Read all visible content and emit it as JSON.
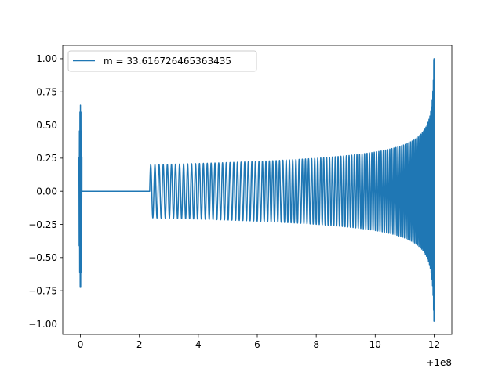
{
  "chart_data": {
    "type": "line",
    "title": "",
    "xlabel": "",
    "ylabel": "",
    "x_offset_label": "+1e8",
    "xlim": [
      -0.6,
      12.6
    ],
    "ylim": [
      -1.08,
      1.1
    ],
    "x_ticks": [
      0,
      2,
      4,
      6,
      8,
      10,
      12
    ],
    "x_tick_labels": [
      "0",
      "2",
      "4",
      "6",
      "8",
      "10",
      "12"
    ],
    "y_ticks": [
      1.0,
      0.75,
      0.5,
      0.25,
      0.0,
      -0.25,
      -0.5,
      -0.75,
      -1.0
    ],
    "y_tick_labels": [
      "1.00",
      "0.75",
      "0.50",
      "0.25",
      "0.00",
      "−0.25",
      "−0.50",
      "−0.75",
      "−1.00"
    ],
    "grid": false,
    "legend_position": "top-left",
    "series": [
      {
        "name": "m = 33.616726465363435",
        "color": "#1f77b4",
        "segments": [
          {
            "kind": "burst",
            "x_start": -0.05,
            "x_end": 0.05,
            "y_max": 0.65,
            "y_min": -0.74
          },
          {
            "kind": "flat",
            "x_start": 0.05,
            "x_end": 2.35,
            "y": 0.0
          },
          {
            "kind": "chirp",
            "x_start": 2.35,
            "x_end": 12.0,
            "amp_start": 0.2,
            "amp_peak_pos": 1.0,
            "amp_peak_neg": -0.98
          }
        ]
      }
    ]
  }
}
